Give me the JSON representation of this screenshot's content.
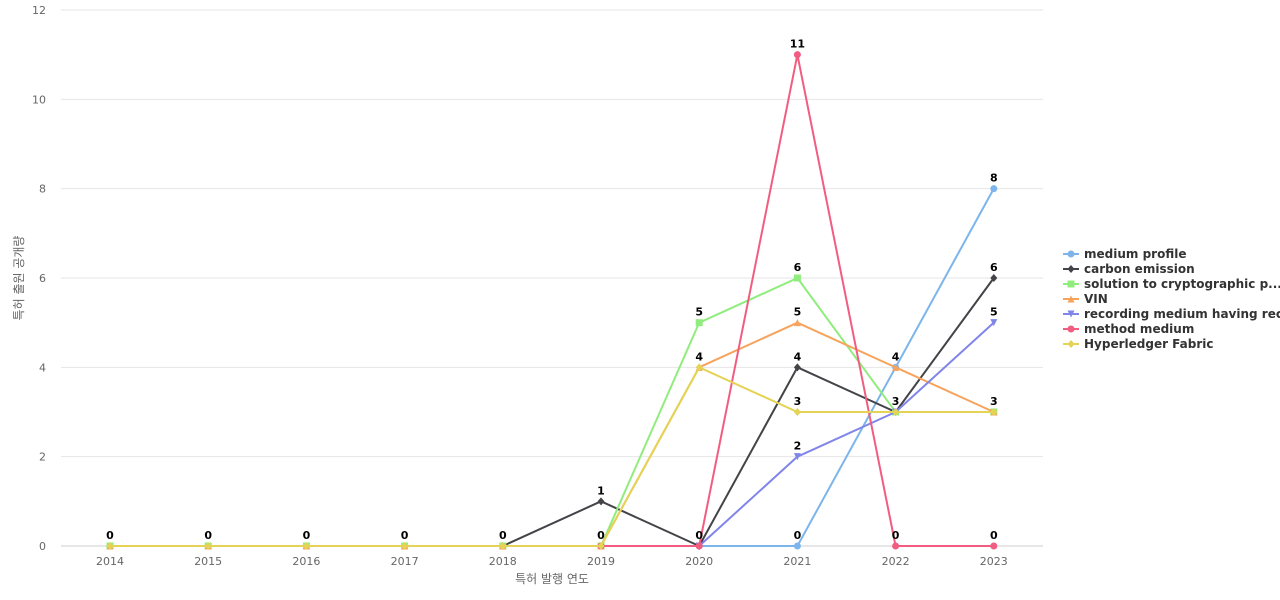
{
  "chart_data": {
    "type": "line",
    "title": "",
    "xlabel": "특허 발행 연도",
    "ylabel": "특허 출원 공개량",
    "ylim": [
      0,
      12
    ],
    "yticks": [
      0,
      2,
      4,
      6,
      8,
      10,
      12
    ],
    "grid": true,
    "legend_position": "right",
    "categories": [
      "2014",
      "2015",
      "2016",
      "2017",
      "2018",
      "2019",
      "2020",
      "2021",
      "2022",
      "2023"
    ],
    "series": [
      {
        "name": "medium profile",
        "color": "#7cb5ec",
        "marker": "circle",
        "values": [
          null,
          null,
          null,
          null,
          null,
          null,
          0,
          0,
          4,
          8
        ]
      },
      {
        "name": "carbon emission",
        "color": "#434348",
        "marker": "diamond",
        "values": [
          null,
          null,
          null,
          null,
          0,
          1,
          0,
          4,
          3,
          6
        ]
      },
      {
        "name": "solution to cryptographic p...",
        "color": "#90ed7d",
        "marker": "square",
        "values": [
          0,
          0,
          0,
          0,
          0,
          0,
          5,
          6,
          3,
          3
        ]
      },
      {
        "name": "VIN",
        "color": "#f7a35c",
        "marker": "triangle",
        "values": [
          0,
          0,
          0,
          0,
          0,
          0,
          4,
          5,
          4,
          3
        ]
      },
      {
        "name": "recording medium having rec...",
        "color": "#8085e9",
        "marker": "triangle-down",
        "values": [
          null,
          null,
          null,
          null,
          null,
          null,
          0,
          2,
          3,
          5
        ]
      },
      {
        "name": "method medium",
        "color": "#f15c80",
        "marker": "circle",
        "values": [
          null,
          null,
          null,
          null,
          null,
          0,
          0,
          11,
          0,
          0
        ]
      },
      {
        "name": "Hyperledger Fabric",
        "color": "#e4d354",
        "marker": "diamond",
        "values": [
          0,
          0,
          0,
          0,
          0,
          0,
          4,
          3,
          3,
          3
        ]
      }
    ],
    "data_labels": [
      {
        "x": "2014",
        "text": "0",
        "series": "VIN",
        "value": 0
      },
      {
        "x": "2015",
        "text": "0",
        "series": "VIN",
        "value": 0
      },
      {
        "x": "2016",
        "text": "0",
        "series": "VIN",
        "value": 0
      },
      {
        "x": "2017",
        "text": "0",
        "series": "VIN",
        "value": 0
      },
      {
        "x": "2018",
        "text": "0",
        "series": "VIN",
        "value": 0
      },
      {
        "x": "2019",
        "text": "1",
        "series": "carbon emission",
        "value": 1
      },
      {
        "x": "2019",
        "text": "0",
        "series": "VIN",
        "value": 0
      },
      {
        "x": "2020",
        "text": "5",
        "series": "solution to cryptographic p...",
        "value": 5
      },
      {
        "x": "2020",
        "text": "4",
        "series": "VIN",
        "value": 4
      },
      {
        "x": "2020",
        "text": "0",
        "series": "carbon emission",
        "value": 0
      },
      {
        "x": "2021",
        "text": "11",
        "series": "method medium",
        "value": 11
      },
      {
        "x": "2021",
        "text": "6",
        "series": "solution to cryptographic p...",
        "value": 6
      },
      {
        "x": "2021",
        "text": "5",
        "series": "VIN",
        "value": 5
      },
      {
        "x": "2021",
        "text": "4",
        "series": "carbon emission",
        "value": 4
      },
      {
        "x": "2021",
        "text": "3",
        "series": "Hyperledger Fabric",
        "value": 3
      },
      {
        "x": "2021",
        "text": "2",
        "series": "recording medium having rec...",
        "value": 2
      },
      {
        "x": "2021",
        "text": "0",
        "series": "medium profile",
        "value": 0
      },
      {
        "x": "2022",
        "text": "4",
        "series": "VIN",
        "value": 4
      },
      {
        "x": "2022",
        "text": "3",
        "series": "carbon emission",
        "value": 3
      },
      {
        "x": "2022",
        "text": "0",
        "series": "method medium",
        "value": 0
      },
      {
        "x": "2023",
        "text": "8",
        "series": "medium profile",
        "value": 8
      },
      {
        "x": "2023",
        "text": "6",
        "series": "carbon emission",
        "value": 6
      },
      {
        "x": "2023",
        "text": "5",
        "series": "recording medium having rec...",
        "value": 5
      },
      {
        "x": "2023",
        "text": "3",
        "series": "VIN",
        "value": 3
      },
      {
        "x": "2023",
        "text": "0",
        "series": "method medium",
        "value": 0
      }
    ]
  }
}
